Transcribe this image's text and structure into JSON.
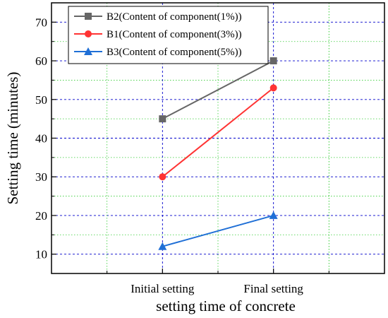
{
  "chart_data": {
    "type": "line",
    "categories": [
      "Initial setting",
      "Final setting"
    ],
    "series": [
      {
        "name": "B2(Content of component(1%))",
        "values": [
          45,
          60
        ],
        "color": "#666666",
        "marker": "square"
      },
      {
        "name": "B1(Content of component(3%))",
        "values": [
          30,
          53
        ],
        "color": "#ff3333",
        "marker": "circle"
      },
      {
        "name": "B3(Content of component(5%))",
        "values": [
          12,
          20
        ],
        "color": "#1f6fd6",
        "marker": "triangle"
      }
    ],
    "title": "",
    "xlabel": "setting time of concrete",
    "ylabel": "Setting time (minutes)",
    "ylim": [
      5,
      75
    ],
    "yticks": [
      10,
      20,
      30,
      40,
      50,
      60,
      70
    ],
    "grid": {
      "major_color": "#0000cc",
      "minor_color": "#33cc33",
      "style": "dashed-major dotted-minor"
    },
    "legend_position": "top-left"
  }
}
